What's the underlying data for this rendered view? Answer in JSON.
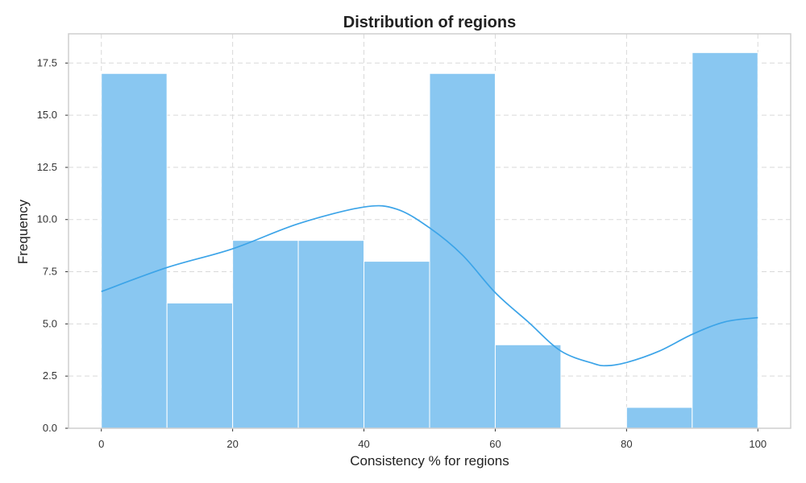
{
  "chart_data": {
    "type": "bar",
    "title": "Distribution of regions",
    "xlabel": "Consistency % for regions",
    "ylabel": "Frequency",
    "bins": [
      {
        "start": 0,
        "end": 10,
        "count": 17
      },
      {
        "start": 10,
        "end": 20,
        "count": 6
      },
      {
        "start": 20,
        "end": 30,
        "count": 9
      },
      {
        "start": 30,
        "end": 40,
        "count": 9
      },
      {
        "start": 40,
        "end": 50,
        "count": 8
      },
      {
        "start": 50,
        "end": 60,
        "count": 17
      },
      {
        "start": 60,
        "end": 70,
        "count": 4
      },
      {
        "start": 70,
        "end": 80,
        "count": 0
      },
      {
        "start": 80,
        "end": 90,
        "count": 1
      },
      {
        "start": 90,
        "end": 100,
        "count": 18
      }
    ],
    "kde_curve": {
      "x": [
        0,
        10,
        20,
        30,
        40,
        45,
        50,
        55,
        60,
        65,
        70,
        75,
        77,
        80,
        85,
        90,
        95,
        100
      ],
      "y": [
        6.55,
        7.7,
        8.6,
        9.8,
        10.6,
        10.5,
        9.6,
        8.3,
        6.5,
        5.1,
        3.7,
        3.1,
        3.0,
        3.15,
        3.7,
        4.5,
        5.1,
        5.3
      ]
    },
    "xlim": [
      -5,
      105
    ],
    "ylim": [
      0,
      18.9
    ],
    "xticks": [
      0,
      20,
      40,
      60,
      80,
      100
    ],
    "yticks": [
      0.0,
      2.5,
      5.0,
      7.5,
      10.0,
      12.5,
      15.0,
      17.5
    ],
    "xtick_labels": [
      "0",
      "20",
      "40",
      "60",
      "80",
      "100"
    ],
    "ytick_labels": [
      "0.0",
      "2.5",
      "5.0",
      "7.5",
      "10.0",
      "12.5",
      "15.0",
      "17.5"
    ],
    "grid": true,
    "colors": {
      "bar": "#89c7f1",
      "kde": "#3ca4e8"
    }
  }
}
